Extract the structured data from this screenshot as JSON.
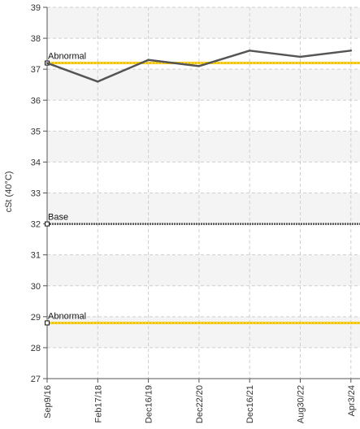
{
  "chart_data": {
    "type": "line",
    "title": "",
    "xlabel": "",
    "ylabel": "cSt (40°C)",
    "ylim": [
      27,
      39
    ],
    "yticks": [
      27,
      28,
      29,
      30,
      31,
      32,
      33,
      34,
      35,
      36,
      37,
      38,
      39
    ],
    "categories": [
      "Sep9/16",
      "Feb17/18",
      "Dec16/19",
      "Dec22/20",
      "Dec16/21",
      "Aug30/22",
      "Apr3/24"
    ],
    "series": [
      {
        "values": [
          37.2,
          36.6,
          37.3,
          37.1,
          37.6,
          37.4,
          37.6
        ],
        "color": "#555555"
      }
    ],
    "reference_lines": [
      {
        "label": "Abnormal",
        "value": 37.2,
        "color": "#f2c500"
      },
      {
        "label": "Base",
        "value": 32.0,
        "color": "#555555"
      },
      {
        "label": "Abnormal",
        "value": 28.8,
        "color": "#f2c500"
      }
    ],
    "grid": true,
    "legend": "none"
  }
}
